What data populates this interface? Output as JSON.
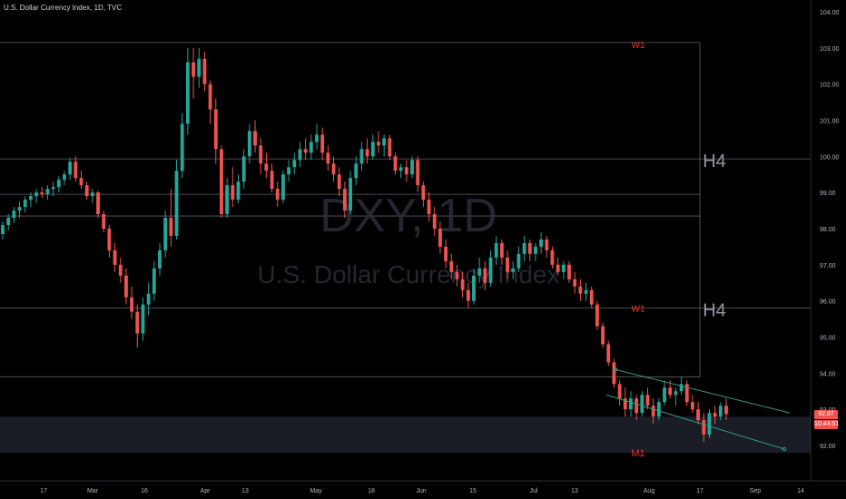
{
  "header": {
    "title": "U.S. Dollar Currency Index, 1D, TVC"
  },
  "watermark": {
    "symbol": "DXY, 1D",
    "name": "U.S. Dollar Currency Index"
  },
  "price_tags": {
    "last_price": "92.87",
    "countdown": "10:44:51"
  },
  "colors": {
    "up": "#26a69a",
    "down": "#ef5350",
    "level_line": "#787b86",
    "channel": "#2e9c7a",
    "zone_label": "#e53935",
    "background": "#000000",
    "axis_text": "#b2b5be"
  },
  "chart_data": {
    "type": "candlestick",
    "title": "U.S. Dollar Currency Index, 1D, TVC",
    "ylim": [
      91.6,
      104.2
    ],
    "y_ticks": [
      "92.00",
      "93.00",
      "94.00",
      "95.00",
      "96.00",
      "97.00",
      "98.00",
      "99.00",
      "100.00",
      "101.00",
      "102.00",
      "103.00",
      "104.00"
    ],
    "x_ticks": [
      "17",
      "Mar",
      "16",
      "Apr",
      "13",
      "May",
      "18",
      "Jun",
      "15",
      "Jul",
      "13",
      "Aug",
      "17",
      "Sep",
      "14"
    ],
    "levels": [
      {
        "label": "W1",
        "price": 103.15
      },
      {
        "label": "H4",
        "price": 99.93
      },
      {
        "label": "",
        "price": 98.95
      },
      {
        "label": "",
        "price": 98.35
      },
      {
        "label": "H4",
        "price": 95.8
      },
      {
        "label": "W1",
        "price": 93.9
      }
    ],
    "zones": [
      {
        "label": "M1",
        "from": 91.8,
        "to": 92.8
      }
    ],
    "channel": {
      "upper": [
        [
          94.1,
          92.9
        ]
      ],
      "lower": [
        [
          93.4,
          91.9
        ]
      ]
    },
    "last_price": 92.87,
    "series": [
      {
        "o": 97.85,
        "h": 98.2,
        "l": 97.7,
        "c": 98.1
      },
      {
        "o": 98.1,
        "h": 98.4,
        "l": 97.95,
        "c": 98.3
      },
      {
        "o": 98.3,
        "h": 98.6,
        "l": 98.15,
        "c": 98.5
      },
      {
        "o": 98.5,
        "h": 98.75,
        "l": 98.3,
        "c": 98.6
      },
      {
        "o": 98.6,
        "h": 98.9,
        "l": 98.45,
        "c": 98.8
      },
      {
        "o": 98.8,
        "h": 99.0,
        "l": 98.6,
        "c": 98.9
      },
      {
        "o": 98.9,
        "h": 99.1,
        "l": 98.7,
        "c": 99.0
      },
      {
        "o": 99.0,
        "h": 99.15,
        "l": 98.85,
        "c": 98.95
      },
      {
        "o": 98.95,
        "h": 99.2,
        "l": 98.8,
        "c": 99.1
      },
      {
        "o": 99.1,
        "h": 99.3,
        "l": 98.9,
        "c": 99.15
      },
      {
        "o": 99.15,
        "h": 99.45,
        "l": 99.0,
        "c": 99.35
      },
      {
        "o": 99.35,
        "h": 99.6,
        "l": 99.2,
        "c": 99.5
      },
      {
        "o": 99.5,
        "h": 99.95,
        "l": 99.35,
        "c": 99.85
      },
      {
        "o": 99.85,
        "h": 100.0,
        "l": 99.3,
        "c": 99.4
      },
      {
        "o": 99.4,
        "h": 99.6,
        "l": 99.1,
        "c": 99.2
      },
      {
        "o": 99.2,
        "h": 99.3,
        "l": 98.8,
        "c": 98.9
      },
      {
        "o": 98.9,
        "h": 99.1,
        "l": 98.7,
        "c": 99.0
      },
      {
        "o": 99.0,
        "h": 99.05,
        "l": 98.3,
        "c": 98.4
      },
      {
        "o": 98.4,
        "h": 98.5,
        "l": 97.9,
        "c": 98.0
      },
      {
        "o": 98.0,
        "h": 98.1,
        "l": 97.2,
        "c": 97.4
      },
      {
        "o": 97.4,
        "h": 97.6,
        "l": 96.8,
        "c": 97.0
      },
      {
        "o": 97.0,
        "h": 97.2,
        "l": 96.5,
        "c": 96.7
      },
      {
        "o": 96.7,
        "h": 96.9,
        "l": 95.9,
        "c": 96.1
      },
      {
        "o": 96.1,
        "h": 96.4,
        "l": 95.5,
        "c": 95.7
      },
      {
        "o": 95.7,
        "h": 95.9,
        "l": 94.7,
        "c": 95.1
      },
      {
        "o": 95.1,
        "h": 96.1,
        "l": 94.9,
        "c": 95.9
      },
      {
        "o": 95.9,
        "h": 96.5,
        "l": 95.6,
        "c": 96.2
      },
      {
        "o": 96.2,
        "h": 97.1,
        "l": 96.0,
        "c": 96.9
      },
      {
        "o": 96.9,
        "h": 97.6,
        "l": 96.7,
        "c": 97.4
      },
      {
        "o": 97.4,
        "h": 98.5,
        "l": 97.2,
        "c": 98.3
      },
      {
        "o": 98.3,
        "h": 99.1,
        "l": 97.5,
        "c": 97.8
      },
      {
        "o": 97.8,
        "h": 99.9,
        "l": 97.7,
        "c": 99.6
      },
      {
        "o": 99.6,
        "h": 101.2,
        "l": 99.4,
        "c": 100.9
      },
      {
        "o": 100.9,
        "h": 103.0,
        "l": 100.6,
        "c": 102.6
      },
      {
        "o": 102.6,
        "h": 103.0,
        "l": 101.6,
        "c": 102.2
      },
      {
        "o": 102.2,
        "h": 103.0,
        "l": 101.9,
        "c": 102.7
      },
      {
        "o": 102.7,
        "h": 102.9,
        "l": 101.8,
        "c": 102.0
      },
      {
        "o": 102.0,
        "h": 102.1,
        "l": 100.9,
        "c": 101.3
      },
      {
        "o": 101.3,
        "h": 101.6,
        "l": 99.8,
        "c": 100.2
      },
      {
        "o": 100.2,
        "h": 100.3,
        "l": 98.3,
        "c": 98.4
      },
      {
        "o": 98.4,
        "h": 99.4,
        "l": 98.3,
        "c": 99.2
      },
      {
        "o": 99.2,
        "h": 99.7,
        "l": 98.6,
        "c": 98.8
      },
      {
        "o": 98.8,
        "h": 99.5,
        "l": 98.7,
        "c": 99.3
      },
      {
        "o": 99.3,
        "h": 100.2,
        "l": 99.1,
        "c": 100.0
      },
      {
        "o": 100.0,
        "h": 100.9,
        "l": 99.8,
        "c": 100.7
      },
      {
        "o": 100.7,
        "h": 101.0,
        "l": 100.1,
        "c": 100.3
      },
      {
        "o": 100.3,
        "h": 100.5,
        "l": 99.5,
        "c": 99.8
      },
      {
        "o": 99.8,
        "h": 100.1,
        "l": 99.4,
        "c": 99.6
      },
      {
        "o": 99.6,
        "h": 99.8,
        "l": 99.0,
        "c": 99.1
      },
      {
        "o": 99.1,
        "h": 99.3,
        "l": 98.6,
        "c": 98.8
      },
      {
        "o": 98.8,
        "h": 99.6,
        "l": 98.7,
        "c": 99.5
      },
      {
        "o": 99.5,
        "h": 99.9,
        "l": 99.3,
        "c": 99.7
      },
      {
        "o": 99.7,
        "h": 100.1,
        "l": 99.5,
        "c": 99.9
      },
      {
        "o": 99.9,
        "h": 100.4,
        "l": 99.7,
        "c": 100.2
      },
      {
        "o": 100.2,
        "h": 100.5,
        "l": 99.9,
        "c": 100.1
      },
      {
        "o": 100.1,
        "h": 100.6,
        "l": 99.9,
        "c": 100.4
      },
      {
        "o": 100.4,
        "h": 100.9,
        "l": 100.2,
        "c": 100.6
      },
      {
        "o": 100.6,
        "h": 100.8,
        "l": 99.9,
        "c": 100.1
      },
      {
        "o": 100.1,
        "h": 100.3,
        "l": 99.6,
        "c": 99.8
      },
      {
        "o": 99.8,
        "h": 100.0,
        "l": 99.3,
        "c": 99.5
      },
      {
        "o": 99.5,
        "h": 99.7,
        "l": 98.9,
        "c": 99.1
      },
      {
        "o": 99.1,
        "h": 99.3,
        "l": 98.3,
        "c": 98.5
      },
      {
        "o": 98.5,
        "h": 99.6,
        "l": 98.4,
        "c": 99.4
      },
      {
        "o": 99.4,
        "h": 100.0,
        "l": 99.2,
        "c": 99.8
      },
      {
        "o": 99.8,
        "h": 100.4,
        "l": 99.6,
        "c": 100.2
      },
      {
        "o": 100.2,
        "h": 100.5,
        "l": 99.8,
        "c": 100.0
      },
      {
        "o": 100.0,
        "h": 100.6,
        "l": 99.9,
        "c": 100.4
      },
      {
        "o": 100.4,
        "h": 100.7,
        "l": 100.1,
        "c": 100.3
      },
      {
        "o": 100.3,
        "h": 100.6,
        "l": 100.0,
        "c": 100.5
      },
      {
        "o": 100.5,
        "h": 100.6,
        "l": 99.9,
        "c": 100.0
      },
      {
        "o": 100.0,
        "h": 100.1,
        "l": 99.5,
        "c": 99.6
      },
      {
        "o": 99.6,
        "h": 99.8,
        "l": 99.4,
        "c": 99.7
      },
      {
        "o": 99.7,
        "h": 99.9,
        "l": 99.3,
        "c": 99.5
      },
      {
        "o": 99.5,
        "h": 100.0,
        "l": 99.4,
        "c": 99.9
      },
      {
        "o": 99.9,
        "h": 100.0,
        "l": 99.0,
        "c": 99.2
      },
      {
        "o": 99.2,
        "h": 99.3,
        "l": 98.6,
        "c": 98.8
      },
      {
        "o": 98.8,
        "h": 99.0,
        "l": 98.2,
        "c": 98.4
      },
      {
        "o": 98.4,
        "h": 98.6,
        "l": 97.8,
        "c": 98.0
      },
      {
        "o": 98.0,
        "h": 98.2,
        "l": 97.3,
        "c": 97.5
      },
      {
        "o": 97.5,
        "h": 97.7,
        "l": 96.9,
        "c": 97.1
      },
      {
        "o": 97.1,
        "h": 97.3,
        "l": 96.6,
        "c": 96.8
      },
      {
        "o": 96.8,
        "h": 97.0,
        "l": 96.4,
        "c": 96.6
      },
      {
        "o": 96.6,
        "h": 96.8,
        "l": 96.1,
        "c": 96.3
      },
      {
        "o": 96.3,
        "h": 96.5,
        "l": 95.8,
        "c": 96.0
      },
      {
        "o": 96.0,
        "h": 96.9,
        "l": 95.9,
        "c": 96.7
      },
      {
        "o": 96.7,
        "h": 97.2,
        "l": 96.5,
        "c": 96.9
      },
      {
        "o": 96.9,
        "h": 97.1,
        "l": 96.3,
        "c": 96.5
      },
      {
        "o": 96.5,
        "h": 97.4,
        "l": 96.4,
        "c": 97.2
      },
      {
        "o": 97.2,
        "h": 97.8,
        "l": 97.0,
        "c": 97.6
      },
      {
        "o": 97.6,
        "h": 97.7,
        "l": 97.0,
        "c": 97.2
      },
      {
        "o": 97.2,
        "h": 97.4,
        "l": 96.6,
        "c": 96.8
      },
      {
        "o": 96.8,
        "h": 97.1,
        "l": 96.6,
        "c": 96.9
      },
      {
        "o": 96.9,
        "h": 97.5,
        "l": 96.8,
        "c": 97.3
      },
      {
        "o": 97.3,
        "h": 97.8,
        "l": 97.1,
        "c": 97.6
      },
      {
        "o": 97.6,
        "h": 97.7,
        "l": 97.1,
        "c": 97.3
      },
      {
        "o": 97.3,
        "h": 97.6,
        "l": 97.1,
        "c": 97.5
      },
      {
        "o": 97.5,
        "h": 97.9,
        "l": 97.3,
        "c": 97.7
      },
      {
        "o": 97.7,
        "h": 97.8,
        "l": 97.2,
        "c": 97.4
      },
      {
        "o": 97.4,
        "h": 97.5,
        "l": 96.9,
        "c": 97.0
      },
      {
        "o": 97.0,
        "h": 97.2,
        "l": 96.7,
        "c": 96.8
      },
      {
        "o": 96.8,
        "h": 97.1,
        "l": 96.6,
        "c": 97.0
      },
      {
        "o": 97.0,
        "h": 97.1,
        "l": 96.5,
        "c": 96.6
      },
      {
        "o": 96.6,
        "h": 96.8,
        "l": 96.2,
        "c": 96.4
      },
      {
        "o": 96.4,
        "h": 96.6,
        "l": 96.0,
        "c": 96.2
      },
      {
        "o": 96.2,
        "h": 96.5,
        "l": 96.0,
        "c": 96.3
      },
      {
        "o": 96.3,
        "h": 96.4,
        "l": 95.8,
        "c": 95.9
      },
      {
        "o": 95.9,
        "h": 96.0,
        "l": 95.2,
        "c": 95.3
      },
      {
        "o": 95.3,
        "h": 95.4,
        "l": 94.7,
        "c": 94.8
      },
      {
        "o": 94.8,
        "h": 94.9,
        "l": 94.2,
        "c": 94.3
      },
      {
        "o": 94.3,
        "h": 94.4,
        "l": 93.6,
        "c": 93.7
      },
      {
        "o": 93.7,
        "h": 93.8,
        "l": 93.1,
        "c": 93.3
      },
      {
        "o": 93.3,
        "h": 93.6,
        "l": 92.8,
        "c": 93.0
      },
      {
        "o": 93.0,
        "h": 93.5,
        "l": 92.8,
        "c": 93.3
      },
      {
        "o": 93.3,
        "h": 93.4,
        "l": 92.7,
        "c": 92.9
      },
      {
        "o": 92.9,
        "h": 93.5,
        "l": 92.8,
        "c": 93.4
      },
      {
        "o": 93.4,
        "h": 93.6,
        "l": 93.0,
        "c": 93.1
      },
      {
        "o": 93.1,
        "h": 93.3,
        "l": 92.6,
        "c": 92.8
      },
      {
        "o": 92.8,
        "h": 93.3,
        "l": 92.7,
        "c": 93.2
      },
      {
        "o": 93.2,
        "h": 93.8,
        "l": 93.1,
        "c": 93.6
      },
      {
        "o": 93.6,
        "h": 93.8,
        "l": 93.3,
        "c": 93.4
      },
      {
        "o": 93.4,
        "h": 93.6,
        "l": 93.1,
        "c": 93.5
      },
      {
        "o": 93.5,
        "h": 93.9,
        "l": 93.4,
        "c": 93.7
      },
      {
        "o": 93.7,
        "h": 93.8,
        "l": 93.1,
        "c": 93.2
      },
      {
        "o": 93.2,
        "h": 93.4,
        "l": 92.9,
        "c": 93.0
      },
      {
        "o": 93.0,
        "h": 93.2,
        "l": 92.6,
        "c": 92.7
      },
      {
        "o": 92.7,
        "h": 92.9,
        "l": 92.1,
        "c": 92.3
      },
      {
        "o": 92.3,
        "h": 93.0,
        "l": 92.2,
        "c": 92.9
      },
      {
        "o": 92.9,
        "h": 93.1,
        "l": 92.6,
        "c": 92.8
      },
      {
        "o": 92.8,
        "h": 93.2,
        "l": 92.7,
        "c": 93.1
      },
      {
        "o": 93.1,
        "h": 93.3,
        "l": 92.7,
        "c": 92.87
      }
    ]
  }
}
